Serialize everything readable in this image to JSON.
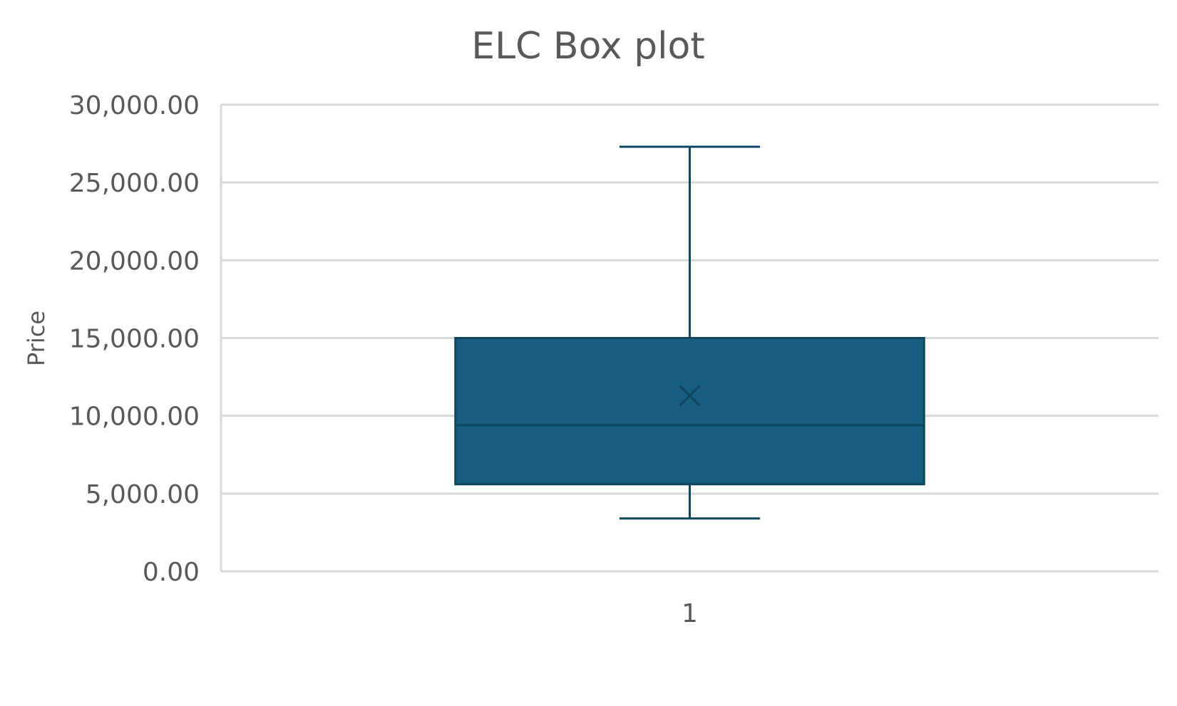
{
  "chart_data": {
    "type": "box",
    "title": "ELC Box plot",
    "xlabel": "",
    "ylabel": "Price",
    "ylim": [
      0,
      30000
    ],
    "y_ticks": [
      0,
      5000,
      10000,
      15000,
      20000,
      25000,
      30000
    ],
    "y_tick_labels": [
      "0.00",
      "5,000.00",
      "10,000.00",
      "15,000.00",
      "20,000.00",
      "25,000.00",
      "30,000.00"
    ],
    "categories": [
      "1"
    ],
    "boxes": [
      {
        "category": "1",
        "min": 3400,
        "q1": 5600,
        "median": 9400,
        "q3": 15000,
        "max": 27300,
        "mean": 11300
      }
    ],
    "grid": true,
    "legend": "none",
    "colors": {
      "box_fill": "#175E80",
      "box_stroke": "#0E4560",
      "whisker": "#0E4560",
      "grid": "#D9D9D9",
      "text": "#595959"
    }
  }
}
